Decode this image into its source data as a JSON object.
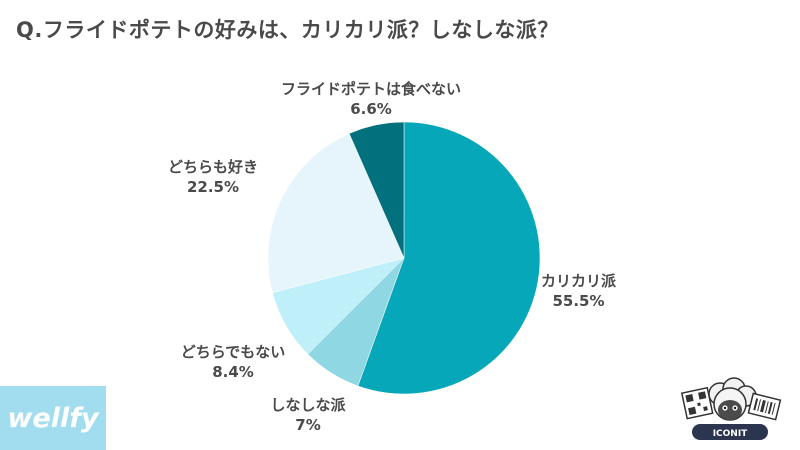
{
  "title": "Q.フライドポテトの好みは、カリカリ派？しなしな派？",
  "chart_data": {
    "type": "pie",
    "title": "Q.フライドポテトの好みは、カリカリ派？しなしな派？",
    "start_angle_deg": 0,
    "direction": "clockwise",
    "slices": [
      {
        "label": "カリカリ派",
        "value_label": "55.5%",
        "value": 55.5,
        "color": "#05a7b8"
      },
      {
        "label": "しなしな派",
        "value_label": "7%",
        "value": 7.0,
        "color": "#8fd7e3"
      },
      {
        "label": "どちらでもない",
        "value_label": "8.4%",
        "value": 8.4,
        "color": "#bff0fa"
      },
      {
        "label": "どちらも好き",
        "value_label": "22.5%",
        "value": 22.5,
        "color": "#e6f5fb"
      },
      {
        "label": "フライドポテトは食べない",
        "value_label": "6.6%",
        "value": 6.6,
        "color": "#03707e"
      }
    ]
  },
  "brand": {
    "logo_text": "wellfy",
    "color": "#a2dcef"
  },
  "mascot": {
    "icon": "sheep-mascot-icon",
    "logo_text": "ICONIT"
  }
}
